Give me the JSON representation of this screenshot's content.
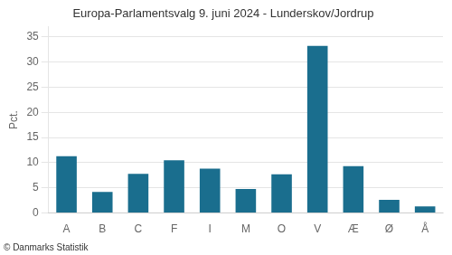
{
  "chart_data": {
    "type": "bar",
    "title": "Europa-Parlamentsvalg 9. juni 2024 - Lunderskov/Jordrup",
    "ylabel": "Pct.",
    "footer": "© Danmarks Statistik",
    "categories": [
      "A",
      "B",
      "C",
      "F",
      "I",
      "M",
      "O",
      "V",
      "Æ",
      "Ø",
      "Å"
    ],
    "values": [
      11.3,
      4.2,
      7.8,
      10.5,
      8.8,
      4.8,
      7.7,
      33.2,
      9.3,
      2.6,
      1.3
    ],
    "color": "#1a6e8e",
    "ylim": [
      0,
      37
    ],
    "yticks": [
      0,
      5,
      10,
      15,
      20,
      25,
      30,
      35
    ],
    "grid": true
  }
}
